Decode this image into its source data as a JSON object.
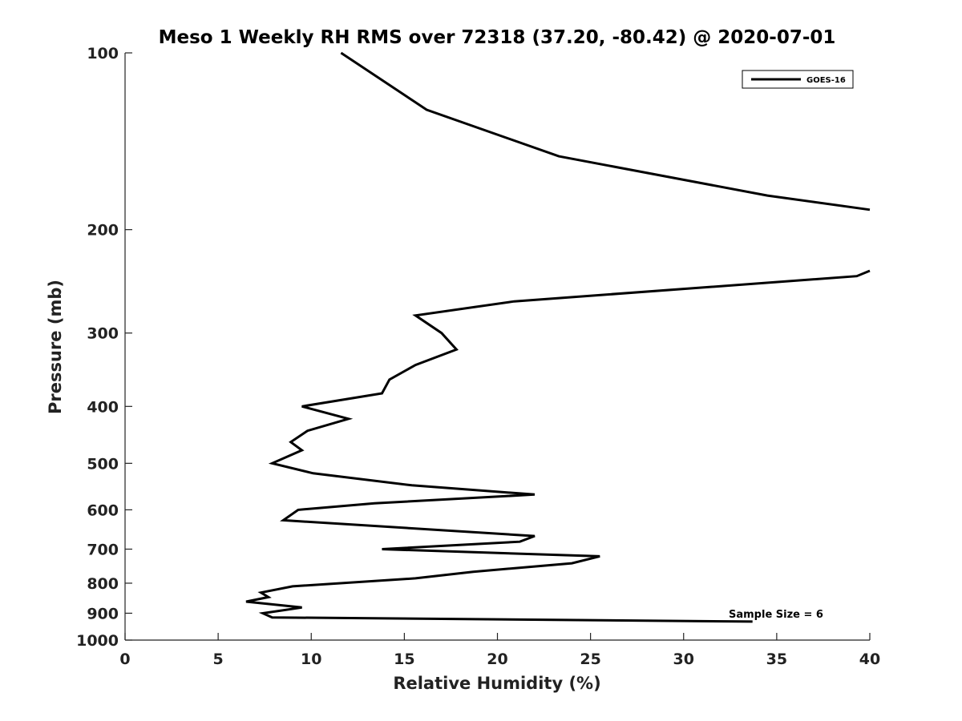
{
  "chart_data": {
    "type": "line",
    "title": "Meso 1 Weekly RH RMS over 72318 (37.20, -80.42) @ 2020-07-01",
    "xlabel": "Relative Humidity (%)",
    "ylabel": "Pressure (mb)",
    "xlim": [
      0,
      40
    ],
    "ylim": [
      100,
      1000
    ],
    "y_scale": "log",
    "y_reversed": true,
    "x_ticks": [
      0,
      5,
      10,
      15,
      20,
      25,
      30,
      35,
      40
    ],
    "y_ticks": [
      100,
      200,
      300,
      400,
      500,
      600,
      700,
      800,
      900,
      1000
    ],
    "grid": false,
    "legend": {
      "position": "top-right",
      "entries": [
        "GOES-16"
      ]
    },
    "annotation": "Sample Size = 6",
    "series": [
      {
        "name": "GOES-16",
        "color": "#000000",
        "segments": [
          [
            [
              11.6,
              100
            ],
            [
              16.2,
              125
            ],
            [
              23.3,
              150
            ],
            [
              34.5,
              175
            ],
            [
              40.0,
              185
            ]
          ],
          [
            [
              40.0,
              235
            ],
            [
              39.3,
              240
            ],
            [
              20.9,
              265
            ],
            [
              15.6,
              280
            ],
            [
              17.0,
              300
            ],
            [
              17.8,
              320
            ],
            [
              15.6,
              340
            ],
            [
              14.2,
              360
            ],
            [
              13.8,
              380
            ],
            [
              9.5,
              400
            ],
            [
              12.0,
              420
            ],
            [
              9.8,
              440
            ],
            [
              8.9,
              460
            ],
            [
              9.5,
              475
            ],
            [
              7.9,
              500
            ],
            [
              10.1,
              520
            ],
            [
              15.4,
              545
            ],
            [
              22.0,
              565
            ],
            [
              13.4,
              585
            ],
            [
              9.3,
              600
            ],
            [
              8.5,
              625
            ],
            [
              22.0,
              665
            ],
            [
              21.2,
              680
            ],
            [
              13.8,
              700
            ],
            [
              25.5,
              720
            ],
            [
              24.0,
              740
            ],
            [
              18.7,
              765
            ],
            [
              15.6,
              785
            ],
            [
              9.0,
              810
            ],
            [
              7.3,
              830
            ],
            [
              7.7,
              845
            ],
            [
              6.5,
              860
            ],
            [
              9.5,
              880
            ],
            [
              7.4,
              900
            ],
            [
              7.9,
              915
            ],
            [
              33.7,
              930
            ]
          ]
        ]
      }
    ]
  }
}
